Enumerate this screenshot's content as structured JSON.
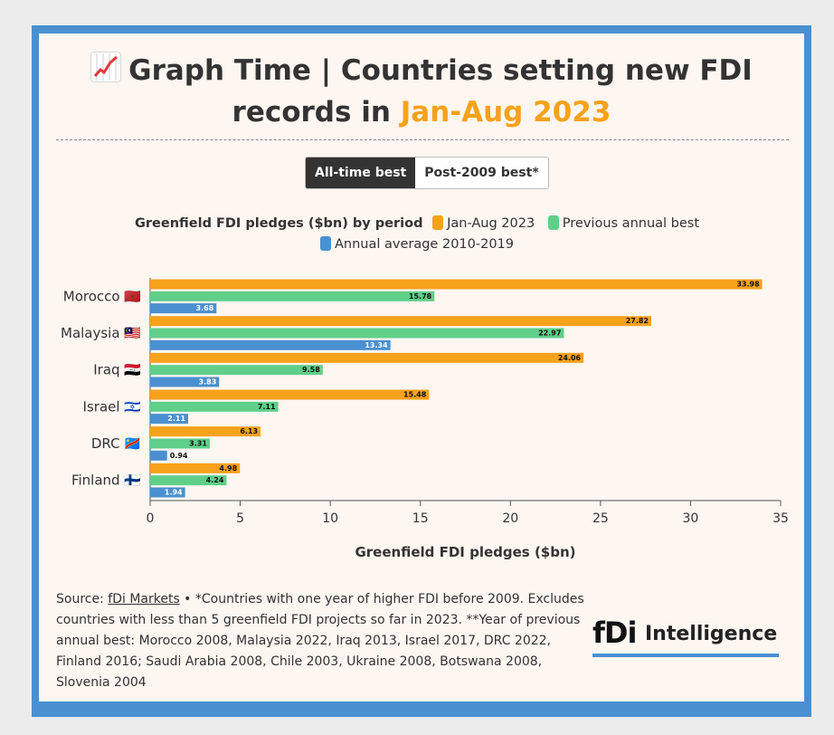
{
  "title": {
    "emoji": "📈",
    "text_before": "Graph Time | Countries setting new FDI records in ",
    "highlight": "Jan-Aug 2023"
  },
  "toggle": {
    "active": "All-time best",
    "inactive": "Post-2009 best*"
  },
  "legend": {
    "title": "Greenfield FDI pledges ($bn) by period",
    "items": [
      {
        "label": "Jan-Aug 2023",
        "color": "#f7a21b"
      },
      {
        "label": "Previous annual best",
        "color": "#5fcf89"
      },
      {
        "label": "Annual average 2010-2019",
        "color": "#4a90d1"
      }
    ]
  },
  "chart_data": {
    "type": "bar",
    "orientation": "horizontal",
    "categories": [
      "Morocco 🇲🇦",
      "Malaysia 🇲🇾",
      "Iraq 🇮🇶",
      "Israel 🇮🇱",
      "DRC 🇨🇩",
      "Finland 🇫🇮"
    ],
    "series": [
      {
        "name": "Jan-Aug 2023",
        "color": "#f7a21b",
        "values": [
          33.98,
          27.82,
          24.06,
          15.48,
          6.13,
          4.98
        ]
      },
      {
        "name": "Previous annual best",
        "color": "#5fcf89",
        "values": [
          15.78,
          22.97,
          9.58,
          7.11,
          3.31,
          4.24
        ]
      },
      {
        "name": "Annual average 2010-2019",
        "color": "#4a90d1",
        "values": [
          3.68,
          13.34,
          3.83,
          2.11,
          0.94,
          1.94
        ]
      }
    ],
    "xlabel": "Greenfield FDI pledges ($bn)",
    "xlim": [
      0,
      35
    ],
    "xticks": [
      0,
      5,
      10,
      15,
      20,
      25,
      30,
      35
    ]
  },
  "source": {
    "prefix": "Source: ",
    "link": "fDi Markets",
    "text": " • *Countries with one year of higher FDI before 2009. Excludes countries with less than 5 greenfield FDI projects so far in 2023. **Year of previous annual best: Morocco 2008, Malaysia 2022, Iraq 2013, Israel 2017, DRC 2022, Finland 2016; Saudi Arabia 2008, Chile 2003, Ukraine 2008, Botswana 2008, Slovenia 2004"
  },
  "logo": {
    "brand": "fDi",
    "word": "Intelligence"
  }
}
